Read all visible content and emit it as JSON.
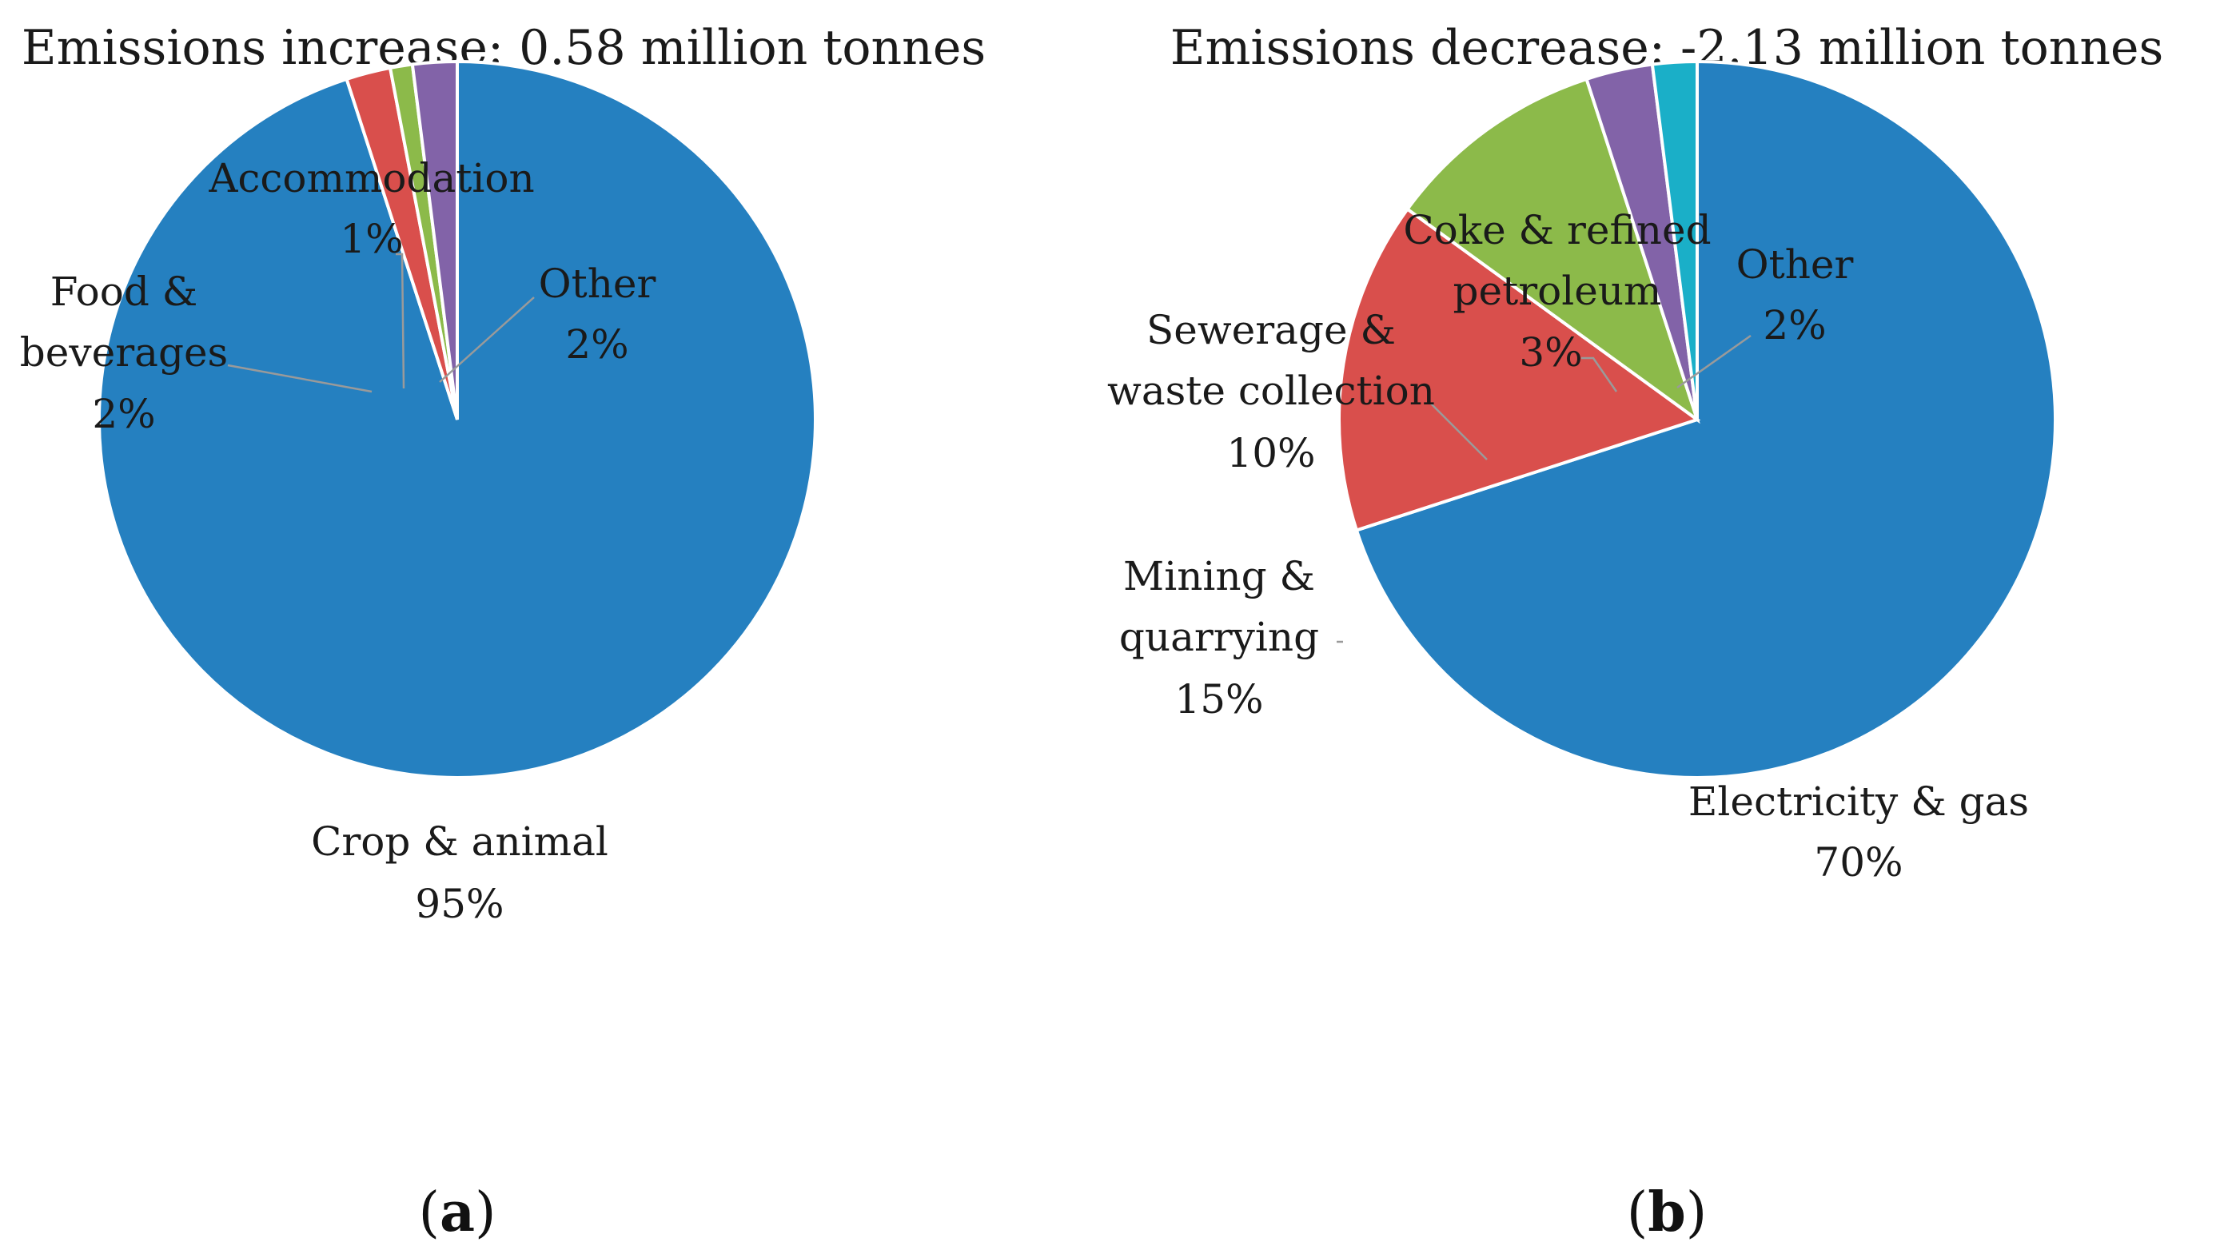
{
  "chart_data": [
    {
      "type": "pie",
      "panel": "a",
      "title": "Emissions increase: 0.58 million tonnes",
      "slices": [
        {
          "label": "Crop & animal",
          "value": 95,
          "pct_label": "95%",
          "color": "#2580C0"
        },
        {
          "label": "Food & beverages",
          "value": 2,
          "pct_label": "2%",
          "color": "#D94F4C"
        },
        {
          "label": "Accommodation",
          "value": 1,
          "pct_label": "1%",
          "color": "#8CBA4A"
        },
        {
          "label": "Other",
          "value": 2,
          "pct_label": "2%",
          "color": "#8263A8"
        }
      ]
    },
    {
      "type": "pie",
      "panel": "b",
      "title": "Emissions decrease: -2.13 million tonnes",
      "slices": [
        {
          "label": "Electricity & gas",
          "value": 70,
          "pct_label": "70%",
          "color": "#2580C0"
        },
        {
          "label": "Mining & quarrying",
          "value": 15,
          "pct_label": "15%",
          "color": "#D94F4C"
        },
        {
          "label": "Sewerage & waste collection",
          "value": 10,
          "pct_label": "10%",
          "color": "#8CBA4A"
        },
        {
          "label": "Coke & refined petroleum",
          "value": 3,
          "pct_label": "3%",
          "color": "#8263A8"
        },
        {
          "label": "Other",
          "value": 2,
          "pct_label": "2%",
          "color": "#1AAFC8"
        }
      ]
    }
  ]
}
